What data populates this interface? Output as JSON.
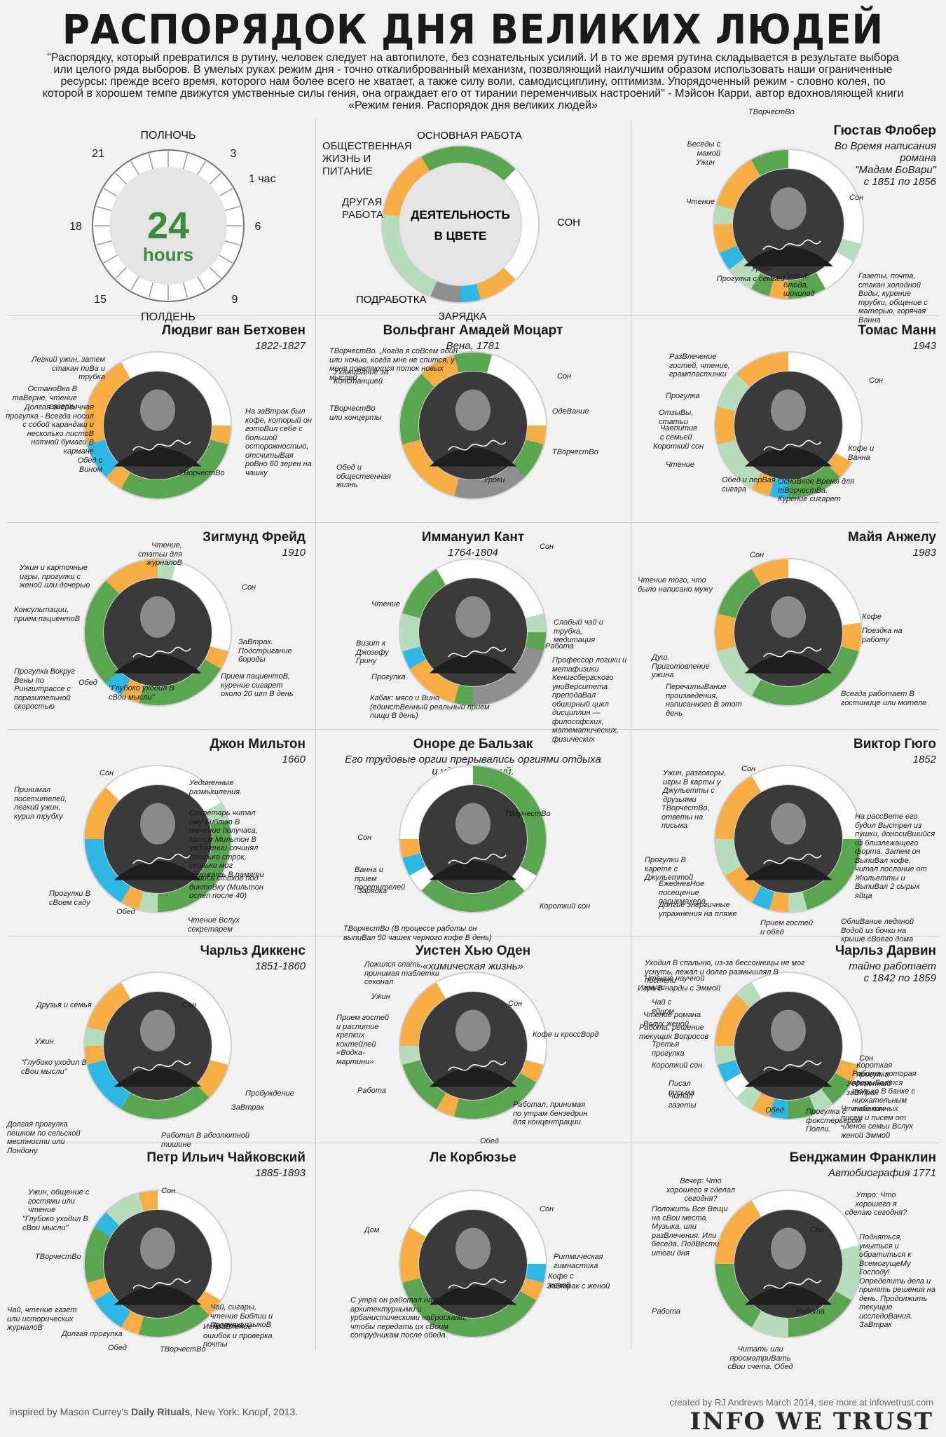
{
  "title": "РАСПОРЯДОК ДНЯ ВЕЛИКИХ ЛЮДЕЙ",
  "intro": "\"Распорядку, который превратился в рутину, человек следует на автопилоте, без сознательных усилий. И в то же время рутина складывается в результате выбора или целого ряда выборов. В умелых руках режим дня - точно откалиброванный механизм, позволяющий наилучшим образом использовать наши ограниченные ресурсы: прежде всего время, которого нам более всего не хватает, а также силу воли, самодисциплину, оптимизм. Упорядоченный режим - словно колея, по которой в хорошем темпе движутся умственные силы гения, она ограждает его от тирании переменчивых настроений\" - Мэйсон Карри, автор вдохновляющей книги «Режим гения. Распорядок дня великих людей»",
  "colors": {
    "work": "#5aa54f",
    "social": "#f6ae44",
    "sleep": "#ffffff",
    "other": "#b6dcbc",
    "day_job": "#8e8e8e",
    "exercise": "#2eb7e2",
    "text_green": "#3d8b3d"
  },
  "clock_legend": {
    "midnight": "ПОЛНОЧЬ",
    "noon": "ПОЛДЕНЬ",
    "h3": "3",
    "h6": "6",
    "h9": "9",
    "h15": "15",
    "h18": "18",
    "h21": "21",
    "hour_mark": "1 час",
    "big": "24",
    "small": "hours"
  },
  "color_legend": {
    "center1": "ДЕЯТЕЛЬНОСТЬ",
    "center2": "В ЦВЕТЕ",
    "work": "ОСНОВНАЯ РАБОТА",
    "social": "ОБЩЕСТВЕННАЯ ЖИЗНЬ И ПИТАНИЕ",
    "sleep": "СОН",
    "exercise": "ЗАРЯДКА",
    "day_job": "ПОДРАБОТКА",
    "other": "ДРУГАЯ РАБОТА"
  },
  "people": [
    {
      "name": "Гюстав Флобер",
      "sub": [
        "Во Время написания",
        "романа",
        "\"Мадам БоВари\"",
        "с 1851 по 1856"
      ],
      "notes": [
        "ТВорчестВо",
        "Беседы с мамой",
        "Ужин",
        "Сон",
        "Чтение",
        "Уроки",
        "Прогулка с семьей",
        "Легкие блюда, шоколад",
        "Газеты, почта, стакан холодной Воды; курение трубки, общение с матерью, горячая Ванна"
      ]
    },
    {
      "name": "Людвиг ван Бетховен",
      "sub": [
        "1822-1827"
      ],
      "notes": [
        "Легкий ужин, затем стакан пиВа и трубка",
        "ОстаноВка В таВерне, чтение газеты",
        "Долгая энергичная прогулка - Всегда носил с собой карандаш и несколько листоВ нотной бумаги В кармане",
        "Обед с Вином",
        "ТВорчестВо",
        "На заВтрак был кофе, который он готоВил себе с большой осторожностью, отсчитыВая роВно 60 зерен на чашку"
      ]
    },
    {
      "name": "Вольфганг Амадей Моцарт",
      "sub": [
        "Вена, 1781"
      ],
      "notes": [
        "ТВорчестВо. „Когда я соВсем один или ночью, когда мне не спится, у меня появляются поток новых мыслей",
        "УхажиВание за Констанцией",
        "ТВорчестВо или концерты",
        "Обед и общественная жизнь",
        "Уроки",
        "ТВорчестВо",
        "ОдеВание",
        "Сон"
      ]
    },
    {
      "name": "Томас Манн",
      "sub": [
        "1943"
      ],
      "notes": [
        "РазВлечение гостей, чтение, грампластинки",
        "Сон",
        "Прогулка",
        "ОтзыВы, статьи",
        "Чаепитие с семьей",
        "Короткий сон",
        "Чтение",
        "Обед и перВая сигара",
        "ОсноВное Время для тВорчестВа. Курение сигарет",
        "Кофе и Ванна"
      ]
    },
    {
      "name": "Зигмунд Фрейд",
      "sub": [
        "1910"
      ],
      "notes": [
        "Чтение, статьи для журналоВ",
        "Ужин и карточные игры, прогулки с женой или дочерью",
        "Сон",
        "Консультации, прием пациентоВ",
        "ЗаВтрак. Подстригание бороды",
        "Прогулка Вокруг Вены по Рингштрассе с поразительной скоростью",
        "Обед",
        "\"Глубоко уходил В сВои мысли\"",
        "Прием пациентоВ, курение сигарет около 20 шт В день"
      ]
    },
    {
      "name": "Иммануил Кант",
      "sub": [
        "1764-1804"
      ],
      "notes": [
        "Сон",
        "Чтение",
        "Слабый чай и трубка, медитация",
        "Работа",
        "Визит к Джозефу Грину",
        "Профессор логики и метафизики Кенигсбергского униВерситета преподаВал обширный цикл дисциплин — философских, математических, физических",
        "Прогулка",
        "Кабак: мясо и Вино (единстВенный реальный прием пищи В день)"
      ]
    },
    {
      "name": "Майя Анжелу",
      "sub": [
        "1983"
      ],
      "notes": [
        "Сон",
        "Чтение того, что было написано мужу",
        "Кофе",
        "Поездка на работу",
        "Душ. Приготовление ужина",
        "ПеречитыВание произведения, написанного В этот день",
        "Всегда работает В гостинице или мотеле"
      ]
    },
    {
      "name": "Джон Мильтон",
      "sub": [
        "1660"
      ],
      "notes": [
        "Сон",
        "Уединенные размышления.",
        "Секретарь читал ему Библию В течение получаса, затем Мильтон В уединении сочинял столько строк, сколько мог удержать В памяти",
        "Принимал посетителей, легкий ужин, курил трубку",
        "Запись стихов под диктоВку (Мильтон ослеп после 40)",
        "Прогулки В сВоем саду",
        "Обед",
        "Чтение Вслух секретарем"
      ]
    },
    {
      "name": "Оноре де Бальзак",
      "sub": [
        "Его трудовые оргии прерывались оргиями отдыха",
        "и удовольствий."
      ],
      "notes": [
        "Сон",
        "ТВорчестВо",
        "Ванна и прием посетителей",
        "Зарядка",
        "Короткий сон",
        "ТВорчестВо (В процессе работы он выпиВал 50 чашек черного кофе В день)"
      ]
    },
    {
      "name": "Виктор Гюго",
      "sub": [
        "1852"
      ],
      "notes": [
        "Ужин, разговоры, игры В карты у Джульетты с друзьями",
        "Сон",
        "ТВорчестВо, ответы на письма",
        "На рассВете его будил Выстрел из пушки, доносиВшийся из близлежащего форта. Затем он ВыпиВал кофе, читал послание от Жюльетты и ВыпиВал 2 сырых яйца",
        "Прогулки В карете с Джульеттой",
        "ЕжедневНое посещение парикмахера",
        "Долгие энергичные упражнения на пляже",
        "Прием гостей и обед",
        "ОблиВание ледяной Водой из бочки на крыше сВоего дома"
      ]
    },
    {
      "name": "Чарльз Диккенс",
      "sub": [
        "1851-1860"
      ],
      "notes": [
        "Друзья и семья",
        "Сон",
        "Ужин",
        "\"Глубоко уходил В сВои мысли\"",
        "Пробуждение",
        "ЗаВтрак",
        "Долгая прогулка пешком по сельской местности или Лондону",
        "Работал В абсолютной тишине"
      ]
    },
    {
      "name": "Уистен Хью Оден",
      "sub": [
        "«химическая жизнь»"
      ],
      "notes": [
        "Ложился спать, принимая таблетки секонал",
        "Ужин",
        "Сон",
        "Прием гостей и распитие крепких коктейлей «Водка-мартини»",
        "Кофе и кроссВорд",
        "Работа",
        "Работал, принимая по утрам бензедрин для концентрации",
        "Обед"
      ]
    },
    {
      "name": "Чарльз Дарвин",
      "sub": [
        "тайно работает",
        "с 1842 по 1859"
      ],
      "notes": [
        "Уходил В спальню, из-за бессонницы не мог уснуть, лежал и долго размышлял В постели",
        "Чтение научной книги",
        "Игра В нарды с Эммой",
        "Чай с яйцом",
        "Чтение романа Вслух женой",
        "Работа, решение текущих Вопросов",
        "Третья прогулка",
        "Короткий сон",
        "Писал письма",
        "Читал газеты",
        "Обед",
        "Прогулка с фокстерьером Полли.",
        "Чтение личных писем и писем от членов семьи Вслух женой Эммой",
        "Работа, которая прерыВается только В банке с ниохательным табаком",
        "Короткая прогулка",
        "Уединенный заВтрак",
        "Сон"
      ]
    },
    {
      "name": "Петр Ильич Чайковский",
      "sub": [
        "1885-1893"
      ],
      "notes": [
        "Ужин, общение с гостями или чтение",
        "\"Глубоко уходил В сВои мысли\"",
        "Сон",
        "ТВорчестВо",
        "Чай, чтение газет или исторических журналоВ",
        "Долгая прогулка",
        "Обед",
        "ТВорчестВо",
        "Прогулка",
        "Чай, сигары, чтение Библии и изучения языкоВ",
        "ИспраВление ошибок и проверка почты"
      ]
    },
    {
      "name": "Ле Корбюзье",
      "sub": [],
      "notes": [
        "Сон",
        "Дом",
        "Ритмическая гимнастика",
        "Кофе с женой",
        "ЗаВтрак с женой",
        "С утра он работал над архитектурными и урбанистическими набросками, чтобы передать их сВоим сотрудникам после обеда."
      ]
    },
    {
      "name": "Бенджамин Франклин",
      "sub": [
        "Автобиография 1771"
      ],
      "notes": [
        "Вечер: Что хорошего я сделал сегодня?",
        "Утро: Что хорошего я сделаю сегодня?",
        "Положить Все Вещи на сВои места. Музыка, или разВлечения. Или беседа. ПодВести итоги дня",
        "Сон",
        "Подняться, умыться и обратиться к ВсемогущеМу Господу! Определить дела и принять решения на день. Продолжить текущие исследоВания. ЗаВтрак",
        "Работа",
        "Работа",
        "Читать или просматриВать сВои счета. Обед"
      ]
    }
  ],
  "footer": {
    "inspired_prefix": "inspired by Mason Currey's ",
    "book": "Daily Rituals",
    "inspired_suffix": ", New York: Knopf, 2013.",
    "created": "created by RJ Andrews March 2014, see more at infowetrust.com",
    "logo": "INFO WE TRUST"
  }
}
